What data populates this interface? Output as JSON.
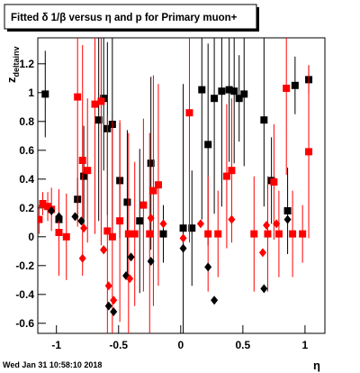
{
  "chart_data": {
    "type": "scatter",
    "title": "Fitted δ 1/β versus η and p for Primary muon+",
    "x_label": "η",
    "y_label": "z",
    "y_label_sub": "deltainv",
    "footer": "Wed Jan 31 10:58:10 2018",
    "xlim": [
      -1.15,
      1.16
    ],
    "ylim": [
      -0.67,
      1.38
    ],
    "xticks": [
      -1,
      -0.5,
      0,
      0.5,
      1
    ],
    "yticks": [
      -0.6,
      -0.4,
      -0.2,
      0,
      0.2,
      0.4,
      0.6,
      0.8,
      1,
      1.2
    ],
    "grid": false,
    "series": [
      {
        "color": "#000000",
        "marker": "square",
        "x": [
          -1.09,
          -0.98,
          -0.83,
          -0.78,
          -0.66,
          -0.62,
          -0.59,
          -0.55,
          -0.49,
          -0.43,
          -0.33,
          -0.24,
          -0.14,
          0.02,
          0.09,
          0.17,
          0.22,
          0.27,
          0.33,
          0.39,
          0.43,
          0.47,
          0.51,
          0.67,
          0.73,
          0.86,
          0.92,
          1.03
        ],
        "values": [
          0.99,
          0.12,
          0.26,
          0.42,
          0.81,
          0.96,
          0.75,
          0.78,
          0.39,
          0.24,
          0.11,
          0.51,
          0.02,
          0.06,
          0.06,
          1.02,
          0.64,
          0.96,
          1.01,
          1.02,
          1.01,
          0.96,
          0.99,
          0.81,
          0.39,
          0.18,
          1.05,
          1.09
        ],
        "errors": [
          0.3,
          0.15,
          0.15,
          0.35,
          0.7,
          0.5,
          0.6,
          0.8,
          0.4,
          0.5,
          0.5,
          0.6,
          0.2,
          1.0,
          0.4,
          0.9,
          0.7,
          0.8,
          0.8,
          0.5,
          0.5,
          0.3,
          0.5,
          0.6,
          0.3,
          0.3,
          0.2,
          0.1
        ]
      },
      {
        "color": "#ff0000",
        "marker": "square",
        "x": [
          -1.14,
          -1.11,
          -1.07,
          -1.04,
          -0.98,
          -0.92,
          -0.83,
          -0.79,
          -0.75,
          -0.69,
          -0.64,
          -0.59,
          -0.55,
          -0.49,
          -0.42,
          -0.37,
          -0.3,
          -0.25,
          -0.22,
          -0.18,
          0.07,
          0.22,
          0.3,
          0.37,
          0.41,
          0.59,
          0.7,
          0.75,
          0.79,
          0.85,
          0.9,
          0.98,
          1.03
        ],
        "values": [
          0.12,
          0.23,
          0.21,
          0.19,
          0.03,
          0,
          0.97,
          0.53,
          0.46,
          0.92,
          0.94,
          0.04,
          0,
          0.11,
          0.02,
          0.02,
          0.22,
          0.02,
          0.32,
          0.36,
          0.86,
          0.02,
          0.02,
          0.42,
          0.46,
          0.02,
          0.02,
          0.38,
          0.02,
          1.03,
          0.02,
          0.02,
          0.59
        ],
        "errors": [
          0.1,
          0.08,
          0.1,
          0.15,
          0.3,
          0.3,
          0.9,
          0.8,
          0.5,
          0.9,
          1.0,
          0.8,
          0.8,
          0.7,
          0.7,
          0.5,
          0.6,
          0.7,
          0.8,
          0.7,
          0.9,
          0.4,
          0.3,
          0.5,
          0.5,
          0.4,
          0.4,
          0.4,
          0.3,
          0.6,
          0.3,
          0.2,
          0.6
        ]
      },
      {
        "color": "#000000",
        "marker": "diamond",
        "x": [
          -1.04,
          -0.98,
          -0.85,
          -0.8,
          -0.62,
          -0.58,
          -0.54,
          -0.44,
          -0.4,
          -0.24,
          0.02,
          0.22,
          0.27,
          0.67,
          0.86
        ],
        "values": [
          0.18,
          0.14,
          0.14,
          0.11,
          -0.09,
          -0.48,
          -0.52,
          -0.27,
          -0.14,
          -0.17,
          -0.08,
          -0.21,
          -0.44,
          -0.36,
          0.12
        ]
      },
      {
        "color": "#ff0000",
        "marker": "diamond",
        "x": [
          -0.78,
          -0.79,
          -0.62,
          -0.58,
          -0.54,
          -0.41,
          -0.24,
          -0.14,
          0.02,
          0.16,
          0.41,
          0.66,
          0.69,
          0.77
        ],
        "values": [
          0.06,
          -0.15,
          -0.09,
          -0.34,
          -0.44,
          -0.29,
          0.13,
          0.09,
          -0.01,
          0.09,
          0.12,
          -0.11,
          0.08,
          0.09
        ]
      }
    ]
  }
}
